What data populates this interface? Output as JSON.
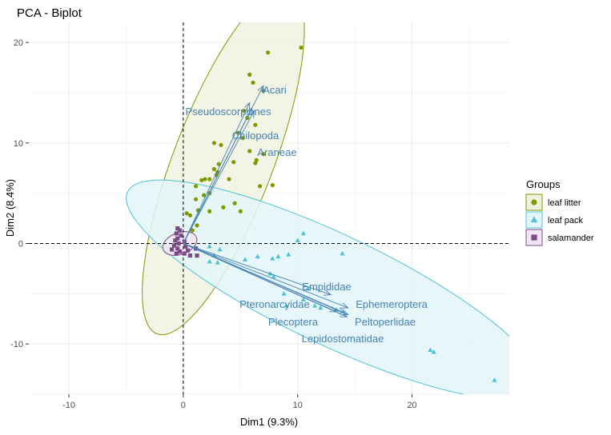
{
  "chart_data": {
    "type": "scatter",
    "title": "PCA - Biplot",
    "xlabel": "Dim1 (9.3%)",
    "ylabel": "Dim2 (8.4%)",
    "xlim": [
      -13.5,
      28.5
    ],
    "ylim": [
      -15.0,
      22.0
    ],
    "x_ticks": [
      -10,
      0,
      10,
      20
    ],
    "y_ticks": [
      -10,
      0,
      10,
      20
    ],
    "grid": true,
    "reference_lines": {
      "x": 0,
      "y": 0
    },
    "legend": {
      "title": "Groups",
      "placement": "right",
      "entries": [
        "leaf litter",
        "leaf pack",
        "salamander"
      ]
    },
    "series": [
      {
        "name": "leaf litter",
        "marker": "circle",
        "color": "#7f9a00",
        "fill": "#f0f2e0",
        "points": [
          [
            10.3,
            19.5
          ],
          [
            7.4,
            19.0
          ],
          [
            5.8,
            16.8
          ],
          [
            6.1,
            16.0
          ],
          [
            7.0,
            15.2
          ],
          [
            5.3,
            13.2
          ],
          [
            5.6,
            12.5
          ],
          [
            6.3,
            11.8
          ],
          [
            4.8,
            11.0
          ],
          [
            5.2,
            10.5
          ],
          [
            2.7,
            10.0
          ],
          [
            3.3,
            9.8
          ],
          [
            5.8,
            9.2
          ],
          [
            7.0,
            8.9
          ],
          [
            6.4,
            8.3
          ],
          [
            4.4,
            8.1
          ],
          [
            6.3,
            8.0
          ],
          [
            3.1,
            7.9
          ],
          [
            2.7,
            7.4
          ],
          [
            3.0,
            7.1
          ],
          [
            2.9,
            6.8
          ],
          [
            6.7,
            5.7
          ],
          [
            4.0,
            6.4
          ],
          [
            1.6,
            6.3
          ],
          [
            1.9,
            6.4
          ],
          [
            2.3,
            6.4
          ],
          [
            7.8,
            5.8
          ],
          [
            1.1,
            5.7
          ],
          [
            2.3,
            5.0
          ],
          [
            1.8,
            4.8
          ],
          [
            1.1,
            4.4
          ],
          [
            4.5,
            4.0
          ],
          [
            3.5,
            3.6
          ],
          [
            2.3,
            3.2
          ],
          [
            1.3,
            3.3
          ],
          [
            0.3,
            3.0
          ],
          [
            0.6,
            2.8
          ],
          [
            5.0,
            3.2
          ],
          [
            1.2,
            1.8
          ],
          [
            0.8,
            1.3
          ]
        ]
      },
      {
        "name": "leaf pack",
        "marker": "triangle",
        "color": "#4ec2d4",
        "fill": "#e3f6f8",
        "points": [
          [
            10.5,
            1.0
          ],
          [
            10.0,
            0.3
          ],
          [
            13.9,
            -1.0
          ],
          [
            2.3,
            -0.3
          ],
          [
            3.2,
            -0.6
          ],
          [
            2.7,
            -1.2
          ],
          [
            6.5,
            -1.3
          ],
          [
            7.8,
            -1.5
          ],
          [
            2.3,
            -1.8
          ],
          [
            3.0,
            -1.9
          ],
          [
            5.4,
            -1.6
          ],
          [
            8.3,
            -1.3
          ],
          [
            9.2,
            -1.1
          ],
          [
            7.6,
            -3.0
          ],
          [
            7.9,
            -3.3
          ],
          [
            10.9,
            -4.5
          ],
          [
            8.8,
            -5.0
          ],
          [
            10.5,
            -5.6
          ],
          [
            11.5,
            -6.2
          ],
          [
            9.0,
            -6.2
          ],
          [
            12.0,
            -6.4
          ],
          [
            13.4,
            -6.6
          ],
          [
            21.6,
            -10.6
          ],
          [
            21.9,
            -10.8
          ],
          [
            27.2,
            -13.6
          ]
        ]
      },
      {
        "name": "salamander",
        "marker": "square",
        "color": "#7b4b88",
        "fill": "#f0e6f1",
        "points": [
          [
            -0.5,
            1.5
          ],
          [
            -0.3,
            1.3
          ],
          [
            -0.6,
            1.0
          ],
          [
            -0.2,
            0.8
          ],
          [
            -0.5,
            0.5
          ],
          [
            -0.7,
            0.3
          ],
          [
            0.1,
            0.2
          ],
          [
            -0.4,
            0.0
          ],
          [
            -0.8,
            -0.2
          ],
          [
            0.2,
            -0.3
          ],
          [
            -0.5,
            -0.5
          ],
          [
            -1.0,
            -0.6
          ],
          [
            0.4,
            -0.7
          ],
          [
            -0.3,
            -0.8
          ],
          [
            0.1,
            -1.0
          ],
          [
            -0.6,
            -1.0
          ],
          [
            1.1,
            -0.5
          ],
          [
            1.2,
            -1.2
          ],
          [
            0.6,
            -1.2
          ]
        ]
      }
    ],
    "ellipses": [
      {
        "group": "leaf litter",
        "cx": 3.5,
        "cy": 8.2,
        "rx": 16.2,
        "ry": 4.35,
        "angle_deg": 69
      },
      {
        "group": "leaf pack",
        "cx": 13.1,
        "cy": -4.6,
        "rx": 19.9,
        "ry": 4.8,
        "angle_deg": -25.5
      },
      {
        "group": "salamander",
        "cx": -0.3,
        "cy": 0.0,
        "rx": 1.55,
        "ry": 0.95,
        "angle_deg": 20
      }
    ],
    "variables": [
      {
        "name": "Acari",
        "x": 7.0,
        "y": 15.7
      },
      {
        "name": "Pseudoscorpiones",
        "x": 5.8,
        "y": 14.0
      },
      {
        "name": "Chilopoda",
        "x": 6.0,
        "y": 13.5
      },
      {
        "name": "Araneae",
        "x": 6.2,
        "y": 13.2
      },
      {
        "name": "Empididae",
        "x": 12.9,
        "y": -5.1
      },
      {
        "name": "Pteronarcyidae",
        "x": 13.4,
        "y": -6.8
      },
      {
        "name": "Ephemeroptera",
        "x": 14.4,
        "y": -6.4
      },
      {
        "name": "Plecoptera",
        "x": 14.1,
        "y": -6.9
      },
      {
        "name": "Peltoperlidae",
        "x": 14.4,
        "y": -7.1
      },
      {
        "name": "Lepidostomatidae",
        "x": 14.3,
        "y": -7.3
      }
    ]
  }
}
